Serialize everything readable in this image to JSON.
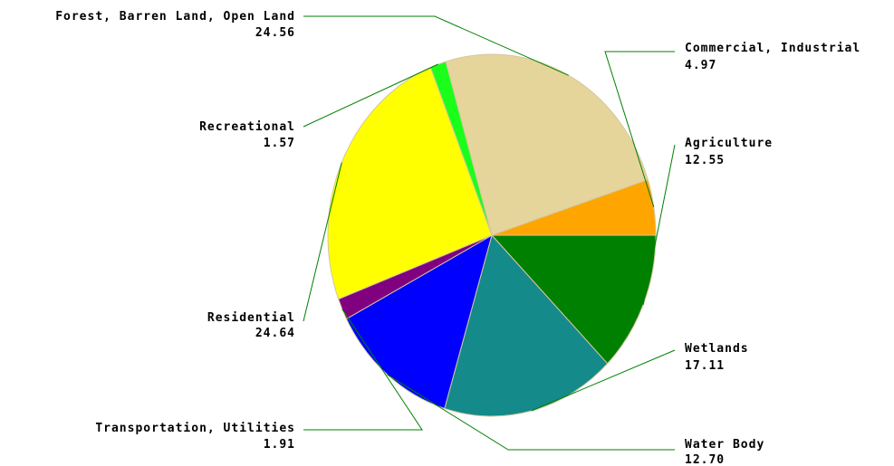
{
  "chart_data": {
    "type": "pie",
    "title": "",
    "slices": [
      {
        "label": "Agriculture",
        "value": 12.55,
        "color": "#008000"
      },
      {
        "label": "Wetlands",
        "value": 17.11,
        "color": "#148a8a"
      },
      {
        "label": "Water Body",
        "value": 12.7,
        "color": "#0000ff"
      },
      {
        "label": "Transportation, Utilities",
        "value": 1.91,
        "color": "#800080"
      },
      {
        "label": "Residential",
        "value": 24.64,
        "color": "#ffff00"
      },
      {
        "label": "Recreational",
        "value": 1.57,
        "color": "#1aff1a"
      },
      {
        "label": "Forest, Barren Land, Open Land",
        "value": 24.56,
        "color": "#e6d59a"
      },
      {
        "label": "Commercial, Industrial",
        "value": 4.97,
        "color": "#ffa500"
      }
    ],
    "value_labels": [
      "12.55",
      "17.11",
      "12.70",
      "1.91",
      "24.64",
      "1.57",
      "24.56",
      "4.97"
    ],
    "slice_outline_color": "#d4c7a0",
    "leader_line_color": "#008000"
  }
}
